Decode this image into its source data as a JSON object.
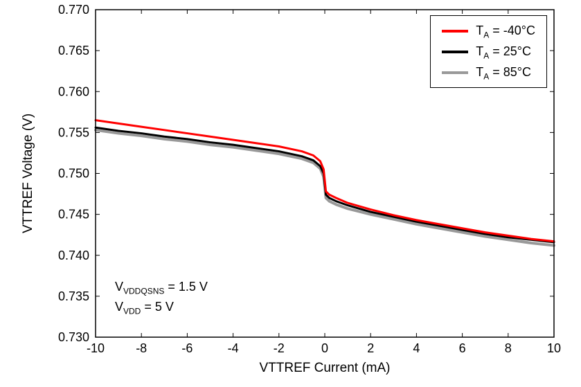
{
  "figure": {
    "background": "#ffffff",
    "frame_color": "#000000"
  },
  "chart_data": {
    "type": "line",
    "title": "",
    "xlabel": "VTTREF Current (mA)",
    "ylabel": "VTTREF Voltage (V)",
    "xlim": [
      -10,
      10
    ],
    "ylim": [
      0.73,
      0.77
    ],
    "x_ticks": [
      -10,
      -8,
      -6,
      -4,
      -2,
      0,
      2,
      4,
      6,
      8,
      10
    ],
    "y_ticks": [
      0.73,
      0.735,
      0.74,
      0.745,
      0.75,
      0.755,
      0.76,
      0.765,
      0.77
    ],
    "y_tick_decimals": 3,
    "grid": false,
    "legend_position": "top-right",
    "x": [
      -10,
      -9,
      -8,
      -7,
      -6,
      -5,
      -4,
      -3,
      -2,
      -1,
      -0.5,
      -0.2,
      -0.05,
      0.05,
      0.2,
      0.5,
      1,
      2,
      3,
      4,
      5,
      6,
      7,
      8,
      9,
      10
    ],
    "series": [
      {
        "name": "TA = -40°C",
        "color": "#ff0000",
        "width": 3,
        "values": [
          0.7565,
          0.7561,
          0.7557,
          0.7553,
          0.7549,
          0.7545,
          0.7541,
          0.7537,
          0.7533,
          0.7527,
          0.7522,
          0.7515,
          0.7505,
          0.7478,
          0.7474,
          0.747,
          0.7464,
          0.7456,
          0.7449,
          0.7443,
          0.7438,
          0.7433,
          0.7428,
          0.7424,
          0.742,
          0.7417
        ]
      },
      {
        "name": "TA = 25°C",
        "color": "#000000",
        "width": 3,
        "values": [
          0.7556,
          0.7552,
          0.7549,
          0.7545,
          0.7542,
          0.7538,
          0.7535,
          0.7531,
          0.7527,
          0.7521,
          0.7516,
          0.7509,
          0.75,
          0.7474,
          0.747,
          0.7466,
          0.7461,
          0.7453,
          0.7447,
          0.7441,
          0.7436,
          0.7431,
          0.7426,
          0.7422,
          0.7419,
          0.7416
        ]
      },
      {
        "name": "TA = 85°C",
        "color": "#999999",
        "width": 4,
        "values": [
          0.7553,
          0.7549,
          0.7546,
          0.7542,
          0.7539,
          0.7535,
          0.7532,
          0.7528,
          0.7524,
          0.7518,
          0.7513,
          0.7506,
          0.7496,
          0.747,
          0.7466,
          0.7462,
          0.7457,
          0.745,
          0.7444,
          0.7438,
          0.7433,
          0.7428,
          0.7423,
          0.7419,
          0.7415,
          0.7412
        ]
      }
    ]
  },
  "legend": {
    "items": [
      {
        "pre": "T",
        "sub": "A",
        "post": " = -40°C"
      },
      {
        "pre": "T",
        "sub": "A",
        "post": " = 25°C"
      },
      {
        "pre": "T",
        "sub": "A",
        "post": " = 85°C"
      }
    ]
  },
  "annotations": {
    "line1": {
      "pre": "V",
      "sub": "VDDQSNS",
      "post": " = 1.5 V"
    },
    "line2": {
      "pre": "V",
      "sub": "VDD",
      "post": " = 5 V"
    }
  }
}
